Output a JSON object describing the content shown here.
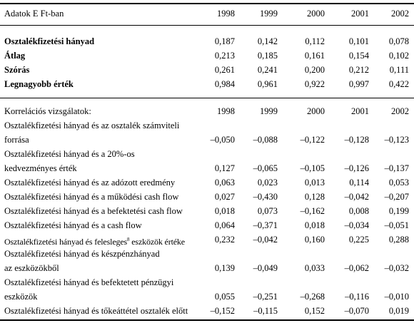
{
  "header": {
    "label": "Adatok E Ft-ban",
    "years": [
      "1998",
      "1999",
      "2000",
      "2001",
      "2002"
    ]
  },
  "summary_rows": [
    {
      "label": "Osztalékfizetési hányad",
      "values": [
        "0,187",
        "0,142",
        "0,112",
        "0,101",
        "0,078"
      ]
    },
    {
      "label": "Átlag",
      "values": [
        "0,213",
        "0,185",
        "0,161",
        "0,154",
        "0,102"
      ]
    },
    {
      "label": "Szórás",
      "values": [
        "0,261",
        "0,241",
        "0,200",
        "0,212",
        "0,111"
      ]
    },
    {
      "label": "Legnagyobb érték",
      "values": [
        "0,984",
        "0,961",
        "0,922",
        "0,997",
        "0,422"
      ]
    }
  ],
  "correlation": {
    "heading": "Korrelációs vizsgálatok:",
    "years": [
      "1998",
      "1999",
      "2000",
      "2001",
      "2002"
    ],
    "rows": [
      {
        "label_lines": [
          "Osztalékfizetési hányad és az osztalék számviteli",
          "forrása"
        ],
        "values": [
          "–0,050",
          "–0,088",
          "–0,122",
          "–0,128",
          "–0,123"
        ]
      },
      {
        "label_lines": [
          "Osztalékfizetési hányad és a 20%-os",
          "kedvezményes érték"
        ],
        "values": [
          "0,127",
          "–0,065",
          "–0,105",
          "–0,126",
          "–0,137"
        ]
      },
      {
        "label_lines": [
          "Osztalékfizetési hányad és az adózott eredmény"
        ],
        "values": [
          "0,063",
          "0,023",
          "0,013",
          "0,114",
          "0,053"
        ]
      },
      {
        "label_lines": [
          "Osztalékfizetési hányad és a működési cash flow"
        ],
        "values": [
          "0,027",
          "–0,430",
          "0,128",
          "–0,042",
          "–0,207"
        ]
      },
      {
        "label_lines": [
          "Osztalékfizetési hányad és a befektetési cash flow"
        ],
        "values": [
          "0,018",
          "0,073",
          "–0,162",
          "0,008",
          "0,199"
        ]
      },
      {
        "label_lines": [
          "Osztalékfizetési hányad és a cash flow"
        ],
        "values": [
          "0,064",
          "–0,371",
          "0,018",
          "–0,034",
          "–0,051"
        ]
      },
      {
        "label_lines": [
          "Osztalékfizetési hányad és felesleges eszközök értéke"
        ],
        "label_parts": [
          "Osztalékfizetési hányad és felesleges",
          "8",
          " eszközök értéke"
        ],
        "values": [
          "0,232",
          "–0,042",
          "0,160",
          "0,225",
          "0,288"
        ]
      },
      {
        "label_lines": [
          "Osztalékfizetési hányad és készpénzhányad",
          "az eszközökből"
        ],
        "values": [
          "0,139",
          "–0,049",
          "0,033",
          "–0,062",
          "–0,032"
        ]
      },
      {
        "label_lines": [
          "Osztalékfizetési hányad és befektetett pénzügyi",
          "eszközök"
        ],
        "values": [
          "0,055",
          "–0,251",
          "–0,268",
          "–0,116",
          "–0,010"
        ]
      },
      {
        "label_lines": [
          "Osztalékfizetési hányad és tőkeáttétel osztalék előtt"
        ],
        "values": [
          "–0,152",
          "–0,115",
          "0,152",
          "–0,070",
          "0,019"
        ]
      }
    ]
  }
}
